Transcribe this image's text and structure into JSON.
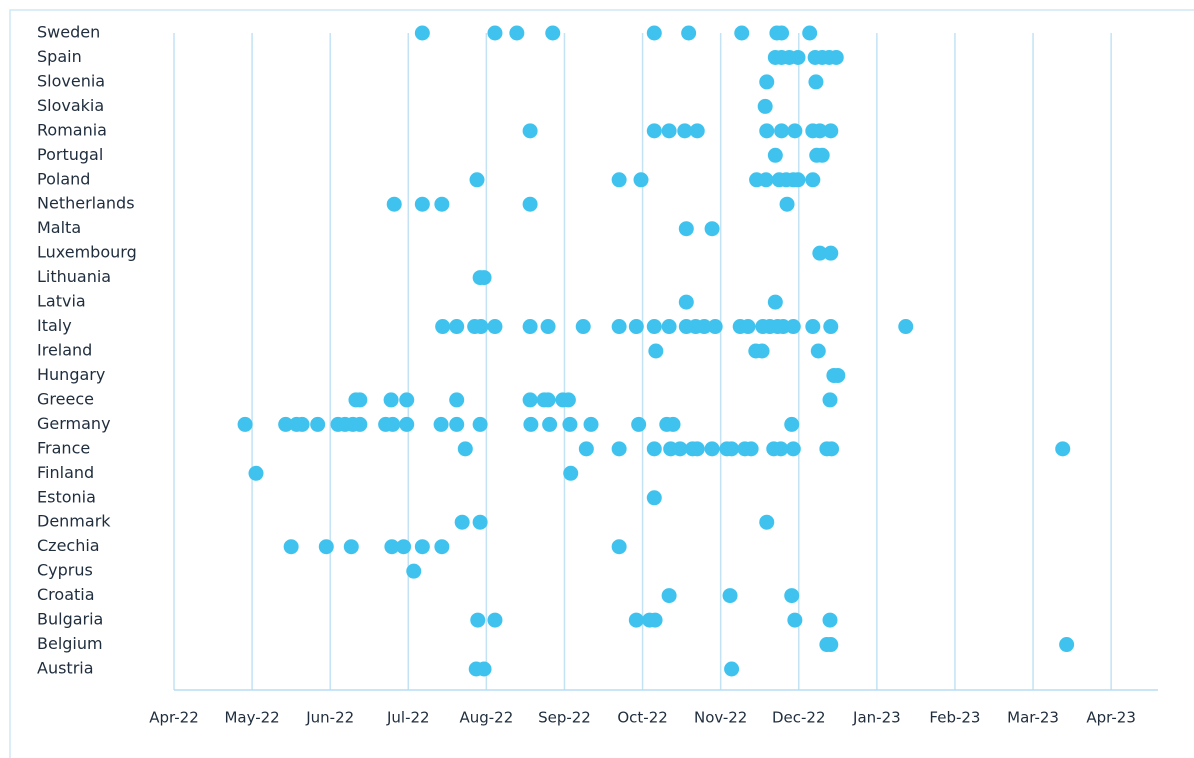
{
  "chart_data": {
    "type": "dot",
    "categories": [
      "Sweden",
      "Spain",
      "Slovenia",
      "Slovakia",
      "Romania",
      "Portugal",
      "Poland",
      "Netherlands",
      "Malta",
      "Luxembourg",
      "Lithuania",
      "Latvia",
      "Italy",
      "Ireland",
      "Hungary",
      "Greece",
      "Germany",
      "France",
      "Finland",
      "Estonia",
      "Denmark",
      "Czechia",
      "Cyprus",
      "Croatia",
      "Bulgaria",
      "Belgium",
      "Austria"
    ],
    "x": [
      [
        3.18,
        4.11,
        4.39,
        4.85,
        6.15,
        6.59,
        7.27,
        7.72,
        7.78,
        8.14
      ],
      [
        7.7,
        7.78,
        7.88,
        7.99,
        8.21,
        8.3,
        8.39,
        8.48
      ],
      [
        7.59,
        8.22
      ],
      [
        7.57
      ],
      [
        4.56,
        6.15,
        6.34,
        6.54,
        6.7,
        7.59,
        7.78,
        7.95,
        8.18,
        8.27,
        8.41
      ],
      [
        7.7,
        8.23,
        8.3
      ],
      [
        3.88,
        5.7,
        5.98,
        7.46,
        7.58,
        7.75,
        7.84,
        7.93,
        7.99,
        8.18
      ],
      [
        2.82,
        3.18,
        3.43,
        4.56,
        7.85
      ],
      [
        6.56,
        6.89
      ],
      [
        8.27,
        8.41
      ],
      [
        3.92,
        3.97
      ],
      [
        6.56,
        7.7
      ],
      [
        3.44,
        3.62,
        3.85,
        3.93,
        4.11,
        4.56,
        4.79,
        5.24,
        5.7,
        5.92,
        6.15,
        6.34,
        6.56,
        6.68,
        6.79,
        6.93,
        7.25,
        7.35,
        7.54,
        7.63,
        7.73,
        7.8,
        7.93,
        8.18,
        8.41,
        9.37
      ],
      [
        6.17,
        7.45,
        7.53,
        8.25
      ],
      [
        8.45,
        8.5
      ],
      [
        2.33,
        2.38,
        2.78,
        2.98,
        3.62,
        4.56,
        4.74,
        4.79,
        4.98,
        5.05,
        8.4
      ],
      [
        0.91,
        1.43,
        1.57,
        1.64,
        1.84,
        2.1,
        2.19,
        2.29,
        2.38,
        2.71,
        2.8,
        2.98,
        3.42,
        3.62,
        3.92,
        4.57,
        4.81,
        5.07,
        5.34,
        5.95,
        6.31,
        6.39,
        7.91
      ],
      [
        3.73,
        5.28,
        5.7,
        6.15,
        6.36,
        6.48,
        6.64,
        6.7,
        6.89,
        7.08,
        7.14,
        7.31,
        7.39,
        7.68,
        7.77,
        7.93,
        8.36,
        8.42,
        11.38
      ],
      [
        1.05,
        5.08
      ],
      [
        6.15
      ],
      [
        3.69,
        3.92,
        7.59
      ],
      [
        1.5,
        1.95,
        2.27,
        2.79,
        2.94,
        3.18,
        3.43,
        5.7
      ],
      [
        3.07
      ],
      [
        6.34,
        7.12,
        7.91
      ],
      [
        3.89,
        4.11,
        5.92,
        6.09,
        6.16,
        7.95,
        8.4
      ],
      [
        8.36,
        8.41,
        11.43
      ],
      [
        3.87,
        3.97,
        7.14
      ]
    ],
    "xlim": [
      0,
      12.6
    ],
    "xticks": [
      {
        "value": 0,
        "label": "Apr-22"
      },
      {
        "value": 1,
        "label": "May-22"
      },
      {
        "value": 2,
        "label": "Jun-22"
      },
      {
        "value": 3,
        "label": "Jul-22"
      },
      {
        "value": 4,
        "label": "Aug-22"
      },
      {
        "value": 5,
        "label": "Sep-22"
      },
      {
        "value": 6,
        "label": "Oct-22"
      },
      {
        "value": 7,
        "label": "Nov-22"
      },
      {
        "value": 8,
        "label": "Dec-22"
      },
      {
        "value": 9,
        "label": "Jan-23"
      },
      {
        "value": 10,
        "label": "Feb-23"
      },
      {
        "value": 11,
        "label": "Mar-23"
      },
      {
        "value": 12,
        "label": "Apr-23"
      }
    ],
    "grid": true,
    "color": "#3fc3ee"
  }
}
